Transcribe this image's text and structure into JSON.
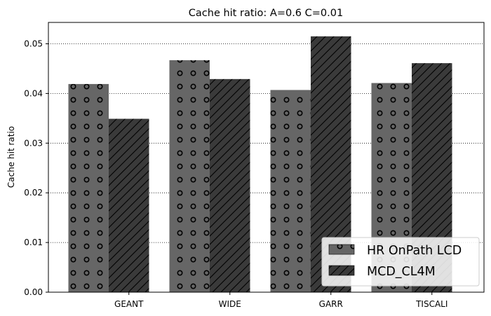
{
  "chart_data": {
    "type": "bar",
    "title": "Cache hit ratio: A=0.6 C=0.01",
    "xlabel": "",
    "ylabel": "Cache hit ratio",
    "categories": [
      "GEANT",
      "WIDE",
      "GARR",
      "TISCALI"
    ],
    "series": [
      {
        "name": "HR OnPath LCD",
        "values": [
          0.0419,
          0.0467,
          0.0407,
          0.0421
        ],
        "color": "#666666",
        "hatch": "circles"
      },
      {
        "name": "MCD_CL4M",
        "values": [
          0.0349,
          0.0429,
          0.0515,
          0.0461
        ],
        "color": "#3a3a3a",
        "hatch": "diagonal"
      }
    ],
    "ylim": [
      0,
      0.0543
    ],
    "yticks": [
      "0.00",
      "0.01",
      "0.02",
      "0.03",
      "0.04",
      "0.05"
    ],
    "ytick_values": [
      0,
      0.01,
      0.02,
      0.03,
      0.04,
      0.05
    ],
    "grid": "horizontal-dotted",
    "legend_position": "lower-right"
  }
}
